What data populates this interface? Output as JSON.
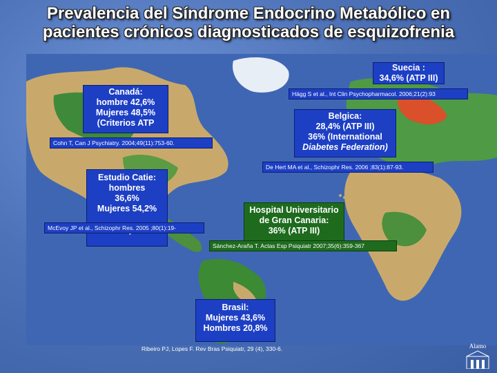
{
  "title": {
    "line1": "Prevalencia  del Síndrome Endocrino Metabólico en",
    "line2": "pacientes crónicos diagnosticados de esquizofrenia"
  },
  "boxes": {
    "suecia": {
      "line1": "Suecia :",
      "line2": "34,6%  (ATP III)"
    },
    "canada": {
      "line1": "Canadá:",
      "line2": "hombre 42,6%",
      "line3": "Mujeres 48,5%",
      "line4": "(Criterios ATP"
    },
    "belgica": {
      "line1": "Belgica:",
      "line2": "28,4%  (ATP III)",
      "line3": "36%  (International",
      "line4": "Diabetes Federation)"
    },
    "catie": {
      "line1": "Estudio Catie:",
      "line2": "hombres",
      "line3": "36,6%",
      "line4": "Mujeres 54,2%",
      "line5": "III)"
    },
    "canaria": {
      "line1": "Hospital Universitario",
      "line2": "de Gran Canaria:",
      "line3": "36%  (ATP III)"
    },
    "brasil": {
      "line1": "Brasil:",
      "line2": "Mujeres 43,6%",
      "line3": "Hombres 20,8%"
    }
  },
  "citations": {
    "hagg": "Hägg S et al., Int Clin Psychopharmacol. 2006;21(2):93",
    "cohn": "Cohn T, Can J Psychiatry. 2004;49(11):753-60.",
    "dehert": "De Hert MA et al., Schizophr Res. 2006 ;83(1):87-93.",
    "mcevoy": "McEvoy JP et al., Schizophr Res. 2005 ;80(1):19-",
    "sanchez": "Sánchez-Araña T. Actas Esp Psiquiatr 2007;35(6):359-367",
    "ribeiro": "Ribeiro PJ, Lopes F. Rev Bras Psiquiatr, 29 (4), 330-6."
  },
  "logo": {
    "text": "Alamo"
  },
  "colors": {
    "box_blue": "#1d3fc4",
    "box_green": "#1e6b1e",
    "ocean": "#4d72b8"
  }
}
